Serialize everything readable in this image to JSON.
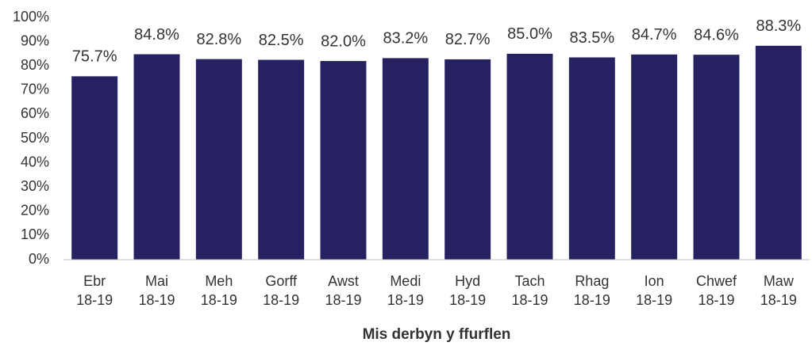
{
  "chart_data": {
    "type": "bar",
    "x_label": "Mis derbyn y ffurflen",
    "categories": [
      "Ebr 18-19",
      "Mai 18-19",
      "Meh 18-19",
      "Gorff 18-19",
      "Awst 18-19",
      "Medi 18-19",
      "Hyd 18-19",
      "Tach 18-19",
      "Rhag 18-19",
      "Ion 18-19",
      "Chwef 18-19",
      "Maw 18-19"
    ],
    "values": [
      75.7,
      84.8,
      82.8,
      82.5,
      82.0,
      83.2,
      82.7,
      85.0,
      83.5,
      84.7,
      84.6,
      88.3
    ],
    "value_labels": [
      "75.7%",
      "84.8%",
      "82.8%",
      "82.5%",
      "82.0%",
      "83.2%",
      "82.7%",
      "85.0%",
      "83.5%",
      "84.7%",
      "84.6%",
      "88.3%"
    ],
    "color": "#262262",
    "ylim": [
      0,
      100
    ],
    "yticks": [
      {
        "value": 0,
        "label": "0%"
      },
      {
        "value": 10,
        "label": "10%"
      },
      {
        "value": 20,
        "label": "20%"
      },
      {
        "value": 30,
        "label": "30%"
      },
      {
        "value": 40,
        "label": "40%"
      },
      {
        "value": 50,
        "label": "50%"
      },
      {
        "value": 60,
        "label": "60%"
      },
      {
        "value": 70,
        "label": "70%"
      },
      {
        "value": 80,
        "label": "80%"
      },
      {
        "value": 90,
        "label": "90%"
      },
      {
        "value": 100,
        "label": "100%"
      }
    ],
    "grid": false
  }
}
